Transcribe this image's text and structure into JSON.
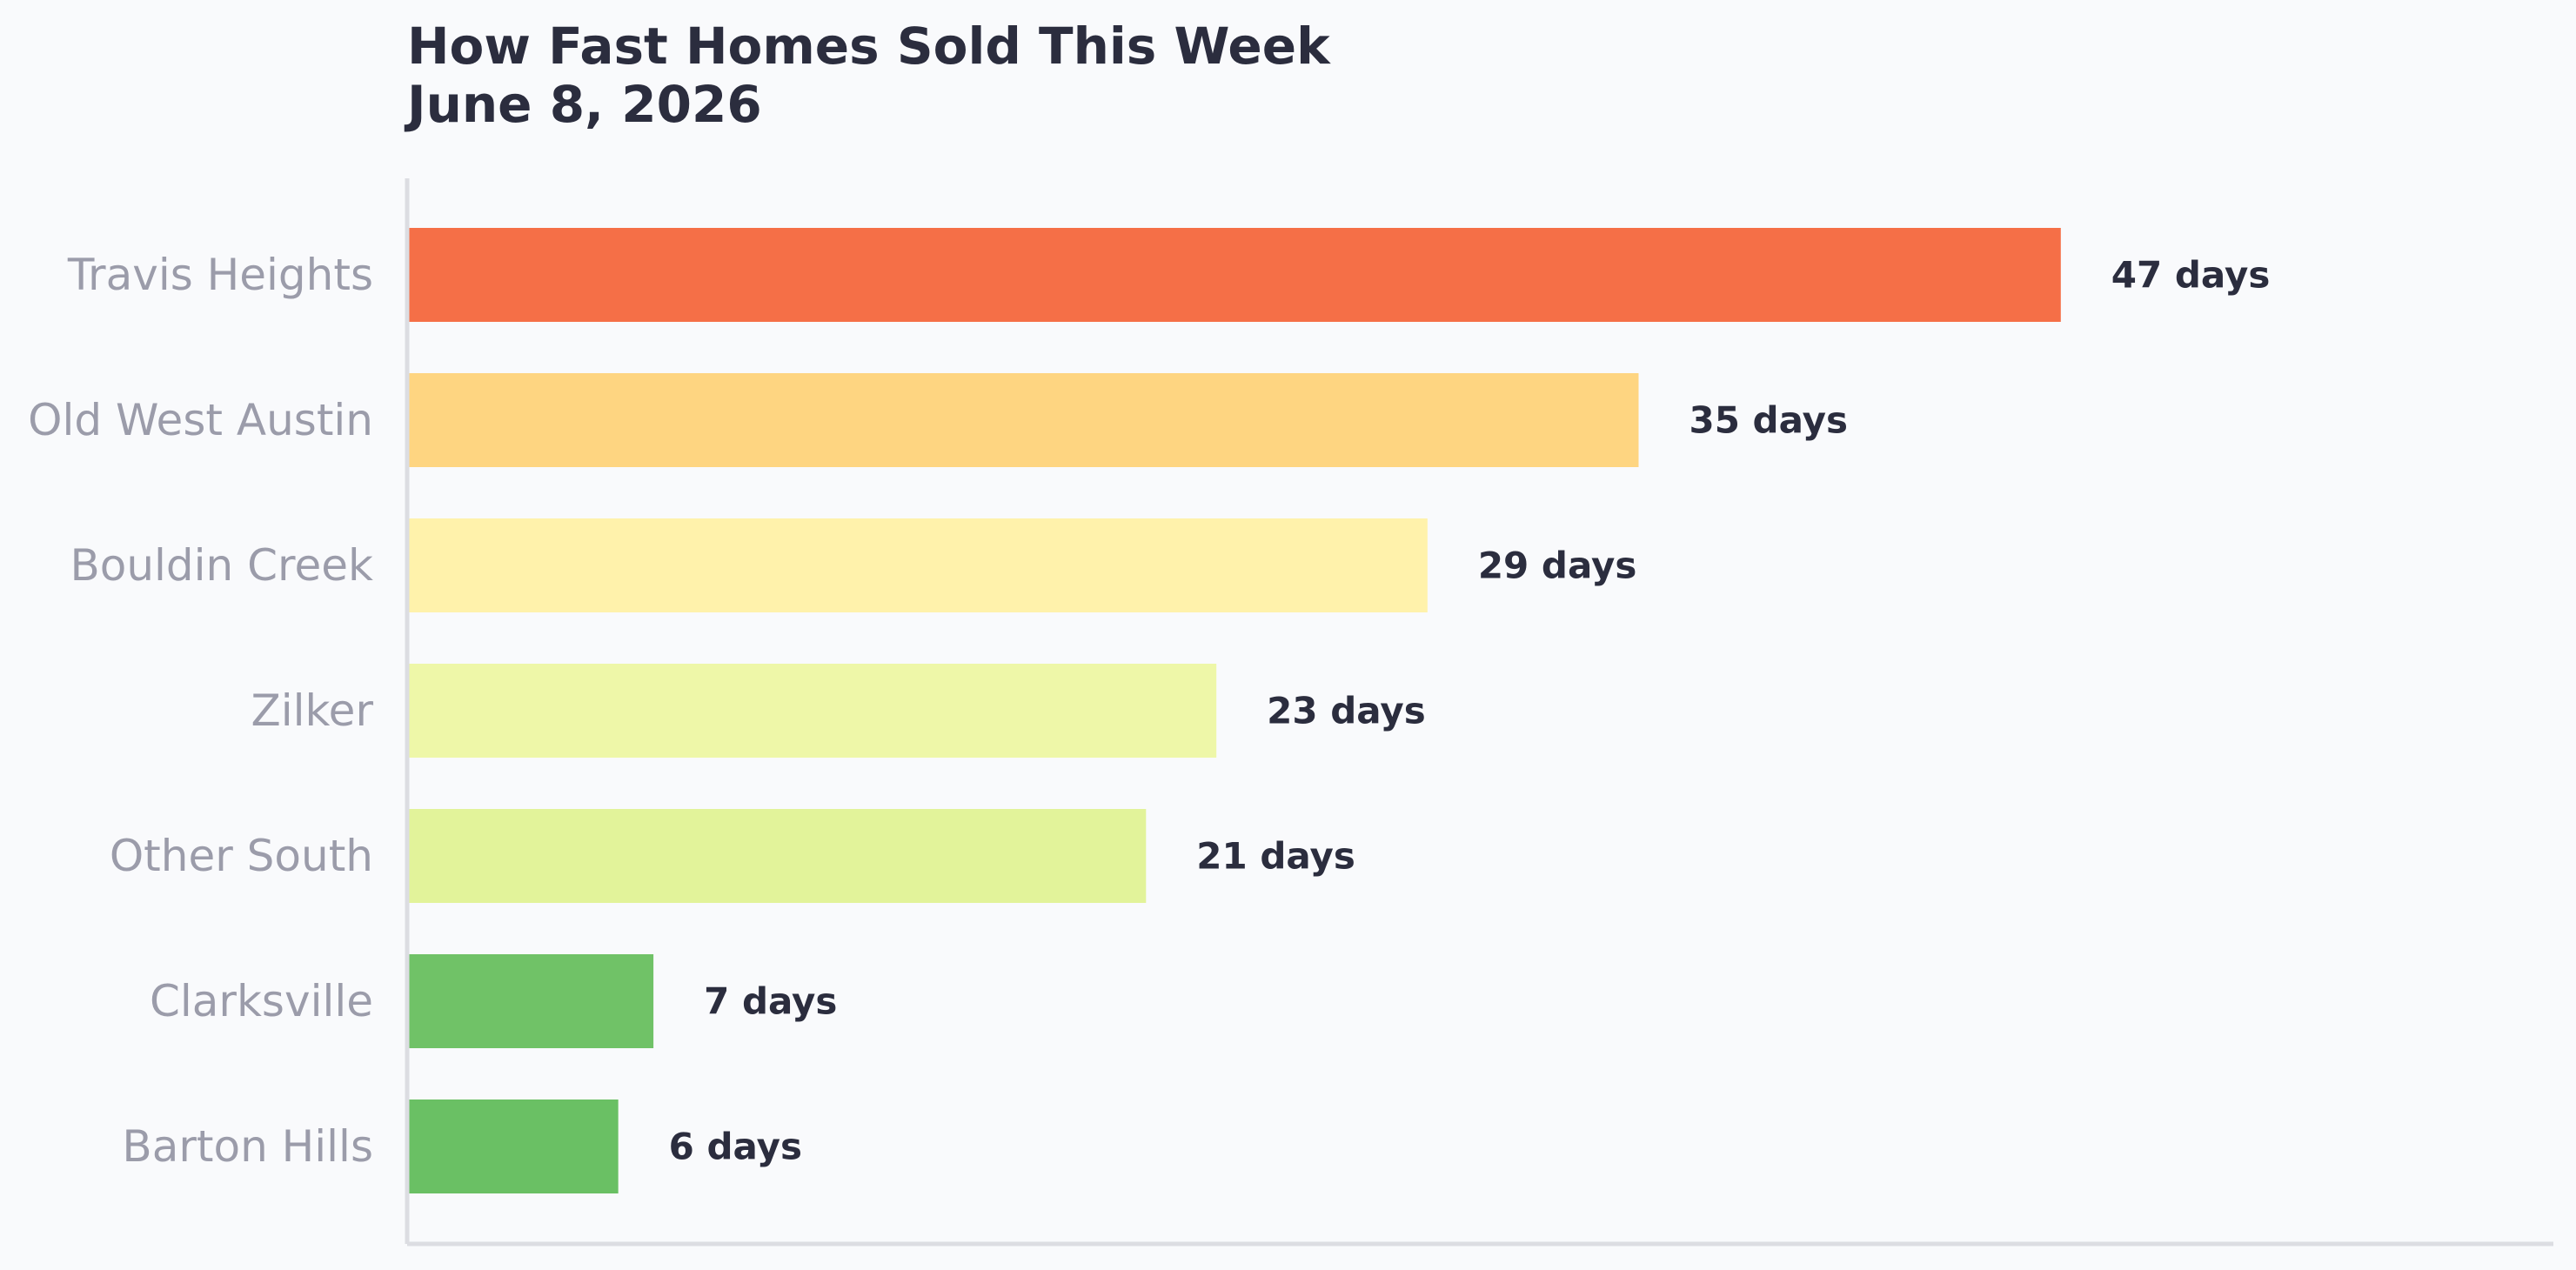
{
  "chart_data": {
    "type": "bar",
    "orientation": "horizontal",
    "title": "How Fast Homes Sold This Week",
    "subtitle": "June 8, 2026",
    "categories": [
      "Travis Heights",
      "Old West Austin",
      "Bouldin Creek",
      "Zilker",
      "Other South",
      "Clarksville",
      "Barton Hills"
    ],
    "values": [
      47,
      35,
      29,
      23,
      21,
      7,
      6
    ],
    "value_labels": [
      "47 days",
      "35 days",
      "29 days",
      "23 days",
      "21 days",
      "7 days",
      "6 days"
    ],
    "colors": [
      "#f56f47",
      "#fed581",
      "#fff2ab",
      "#eef7a8",
      "#e2f39a",
      "#70c267",
      "#6ac064"
    ],
    "xlim": [
      0,
      61
    ],
    "grid": false,
    "xlabel": "",
    "ylabel": ""
  }
}
